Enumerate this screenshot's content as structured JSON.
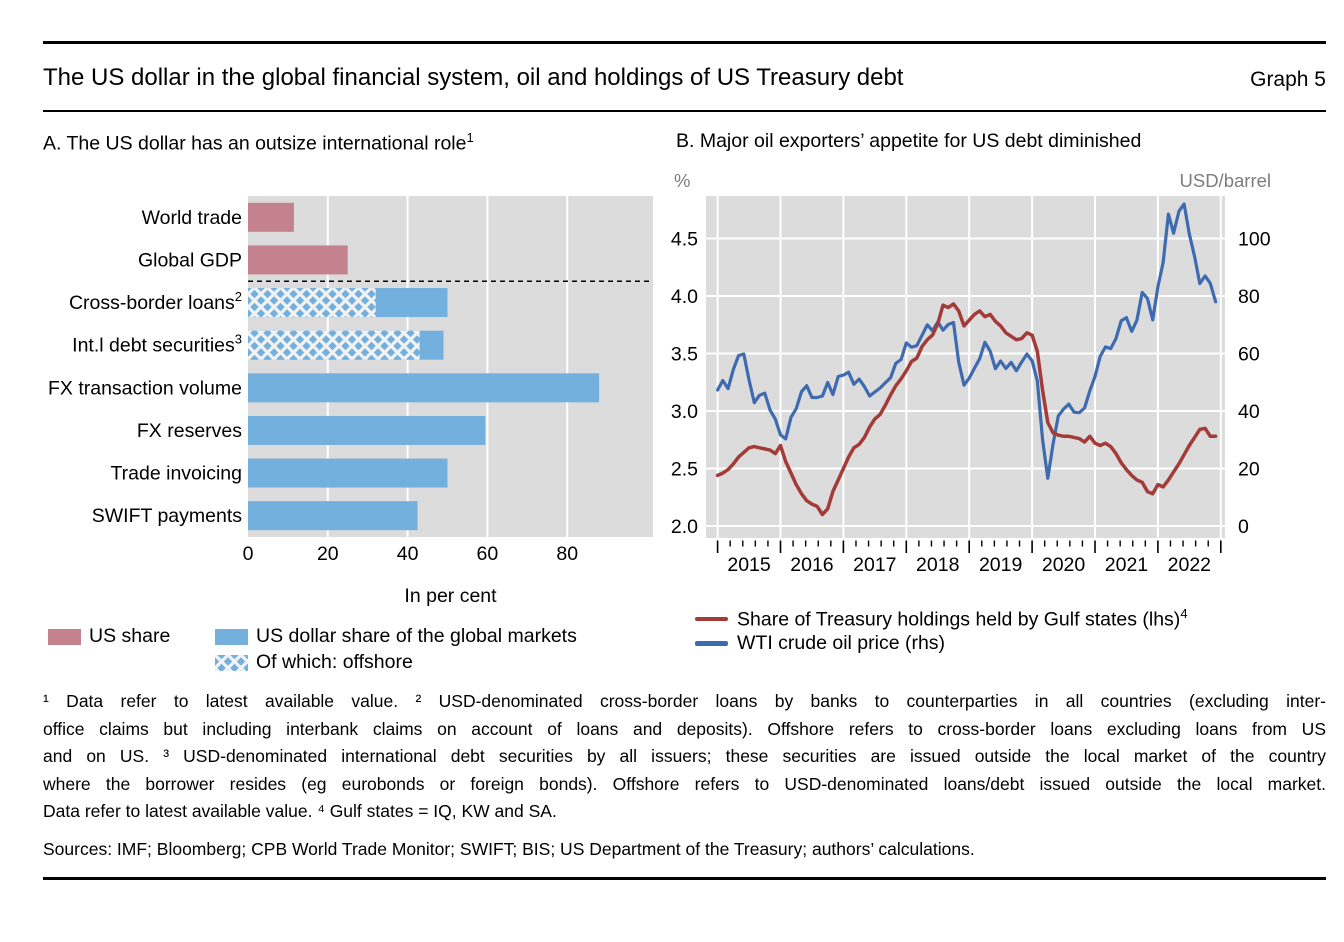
{
  "header": {
    "title": "The US dollar in the global financial system, oil and holdings of US Treasury debt",
    "graph_label": "Graph 5"
  },
  "panel_a": {
    "title": "A. The US dollar has an outsize international role",
    "title_sup": "1",
    "legend": [
      {
        "label": "US share",
        "color": "#c4828f"
      },
      {
        "label": "US dollar share of the global markets",
        "color": "#74b0dd"
      },
      {
        "label": "Of which: offshore",
        "pattern": "crosshatch"
      }
    ]
  },
  "panel_b": {
    "title": "B. Major oil exporters’ appetite for US debt diminished",
    "legend": [
      {
        "label": "Share of Treasury holdings held by Gulf states (lhs)",
        "sup": "4",
        "color": "#a33b38"
      },
      {
        "label": "WTI crude oil price (rhs)",
        "sup": "",
        "color": "#3e6bb0"
      }
    ]
  },
  "footnotes": {
    "lines": [
      "¹  Data refer to latest available value.    ²  USD-denominated cross-border loans by banks to counterparties in all countries (excluding inter-",
      "office claims but including interbank claims on account of loans and deposits). Offshore refers to cross-border loans excluding loans from US",
      "and on US.    ³  USD-denominated international debt securities by all issuers; these securities are issued outside the local market of the country",
      "where the borrower resides (eg eurobonds or foreign bonds). Offshore refers to USD-denominated loans/debt issued outside the local market.",
      "Data refer to latest available value.    ⁴  Gulf states = IQ, KW and SA."
    ]
  },
  "sources": "Sources: IMF; Bloomberg; CPB World Trade Monitor; SWIFT; BIS; US Department of the Treasury; authors’ calculations.",
  "colors": {
    "bar_pink": "#c4828f",
    "bar_blue": "#74b0dd",
    "hatch_line": "#f2f2f2",
    "line_red": "#a33b38",
    "line_blue": "#3e6bb0",
    "plot_bg": "#dcdcdc",
    "grid": "#ffffff",
    "unit_label_gray": "#7d7d7d"
  },
  "chart_data": [
    {
      "type": "bar",
      "orientation": "horizontal",
      "title": "A. The US dollar has an outsize international role¹",
      "xlabel": "In per cent",
      "xlim": [
        0,
        101.5
      ],
      "xticks": [
        0,
        20,
        40,
        60,
        80
      ],
      "grid": true,
      "separator_after_category_index": 1,
      "categories": [
        {
          "label": "World trade",
          "sup": ""
        },
        {
          "label": "Global GDP",
          "sup": ""
        },
        {
          "label": "Cross-border loans",
          "sup": "2"
        },
        {
          "label": "Int.l debt securities",
          "sup": "3"
        },
        {
          "label": "FX transaction volume",
          "sup": ""
        },
        {
          "label": "FX reserves",
          "sup": ""
        },
        {
          "label": "Trade invoicing",
          "sup": ""
        },
        {
          "label": "SWIFT payments",
          "sup": ""
        }
      ],
      "series": [
        {
          "name": "US share",
          "color": "#c4828f",
          "values": [
            11.5,
            25,
            null,
            null,
            null,
            null,
            null,
            null
          ]
        },
        {
          "name": "US dollar share of the global markets",
          "color": "#74b0dd",
          "values": [
            null,
            null,
            50,
            49,
            88,
            59.5,
            50,
            42.5
          ]
        },
        {
          "name": "Of which: offshore",
          "pattern": "crosshatch",
          "values": [
            null,
            null,
            32,
            43,
            null,
            null,
            null,
            null
          ]
        }
      ]
    },
    {
      "type": "line",
      "title": "B. Major oil exporters’ appetite for US debt diminished",
      "frequency": "monthly",
      "x_start": "2015-01",
      "x_end": "2022-12",
      "x_year_labels": [
        "2015",
        "2016",
        "2017",
        "2018",
        "2019",
        "2020",
        "2021",
        "2022"
      ],
      "left_axis": {
        "label": "%",
        "ticks": [
          4.5,
          4.0,
          3.5,
          3.0,
          2.5,
          2.0
        ],
        "range": [
          1.9,
          4.87
        ]
      },
      "right_axis": {
        "label": "USD/barrel",
        "ticks": [
          100,
          80,
          60,
          40,
          20,
          0
        ],
        "range": [
          -4,
          114.8
        ]
      },
      "legend_position": "bottom",
      "grid": true,
      "series": [
        {
          "name": "Share of Treasury holdings held by Gulf states (lhs)⁴",
          "axis": "left",
          "color": "#a33b38",
          "values": [
            2.44,
            2.46,
            2.49,
            2.54,
            2.6,
            2.64,
            2.68,
            2.69,
            2.68,
            2.67,
            2.66,
            2.63,
            2.7,
            2.56,
            2.46,
            2.36,
            2.28,
            2.22,
            2.19,
            2.17,
            2.1,
            2.15,
            2.3,
            2.4,
            2.5,
            2.6,
            2.68,
            2.71,
            2.77,
            2.86,
            2.93,
            2.97,
            3.05,
            3.14,
            3.22,
            3.28,
            3.35,
            3.43,
            3.46,
            3.56,
            3.62,
            3.66,
            3.76,
            3.92,
            3.9,
            3.93,
            3.87,
            3.74,
            3.79,
            3.84,
            3.87,
            3.82,
            3.84,
            3.78,
            3.74,
            3.68,
            3.65,
            3.62,
            3.63,
            3.68,
            3.66,
            3.52,
            3.18,
            2.9,
            2.81,
            2.79,
            2.78,
            2.78,
            2.77,
            2.76,
            2.73,
            2.78,
            2.72,
            2.7,
            2.72,
            2.69,
            2.63,
            2.55,
            2.49,
            2.44,
            2.4,
            2.38,
            2.3,
            2.28,
            2.36,
            2.34,
            2.4,
            2.47,
            2.54,
            2.62,
            2.7,
            2.77,
            2.84,
            2.85,
            2.78,
            2.78
          ]
        },
        {
          "name": "WTI crude oil price (rhs)",
          "axis": "right",
          "color": "#3e6bb0",
          "values": [
            47.3,
            50.6,
            47.8,
            54.4,
            59.3,
            59.8,
            50.9,
            42.9,
            45.5,
            46.2,
            40.4,
            37.2,
            31.7,
            30.3,
            37.8,
            40.8,
            46.7,
            48.8,
            44.7,
            44.7,
            45.2,
            49.9,
            45.7,
            52.0,
            52.5,
            53.5,
            49.3,
            51.1,
            48.5,
            45.2,
            46.6,
            48.0,
            49.8,
            51.6,
            56.6,
            57.9,
            63.7,
            62.2,
            62.7,
            66.3,
            70.0,
            67.9,
            71.0,
            68.1,
            70.1,
            70.8,
            57.0,
            49.0,
            51.4,
            54.9,
            58.2,
            63.9,
            60.8,
            54.7,
            57.4,
            54.8,
            56.9,
            54.0,
            57.0,
            59.8,
            57.5,
            50.5,
            29.9,
            16.6,
            28.6,
            38.3,
            40.7,
            42.4,
            39.6,
            39.4,
            41.0,
            47.0,
            52.0,
            59.0,
            62.3,
            61.7,
            65.2,
            71.4,
            72.5,
            67.7,
            71.6,
            81.2,
            79.2,
            71.7,
            83.2,
            91.6,
            108.5,
            101.8,
            109.5,
            112.0,
            101.6,
            93.7,
            84.3,
            87.0,
            84.4,
            78.0
          ]
        }
      ]
    }
  ]
}
